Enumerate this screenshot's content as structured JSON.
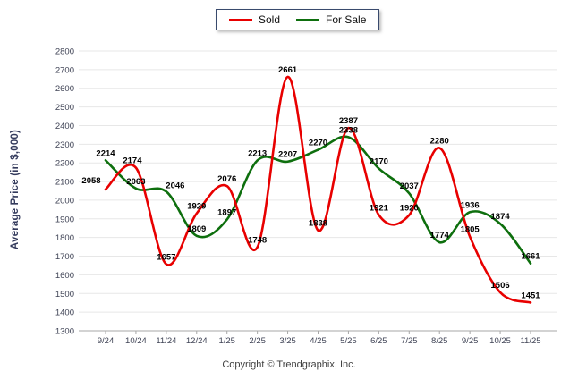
{
  "footer": {
    "copyright": "Copyright © Trendgraphix, Inc."
  },
  "axis_colors": {
    "grid": "#e7e7e7",
    "axis_line": "#a7a7a7",
    "tick_text": "#3f4355",
    "data_label_text": "#000000"
  },
  "chart_data": {
    "type": "line",
    "title": "",
    "xlabel": "",
    "ylabel": "Average Price (in $,000)",
    "ylim": [
      1300,
      2800
    ],
    "ytick_step": 100,
    "grid": "horizontal",
    "legend_position": "top-center",
    "smooth": true,
    "data_labels": true,
    "categories": [
      "9/24",
      "10/24",
      "11/24",
      "12/24",
      "1/25",
      "2/25",
      "3/25",
      "4/25",
      "5/25",
      "6/25",
      "7/25",
      "8/25",
      "9/25",
      "10/25",
      "11/25"
    ],
    "series": [
      {
        "name": "Sold",
        "color": "#e80000",
        "values": [
          2058,
          2174,
          1657,
          1929,
          2076,
          1748,
          2661,
          1838,
          2387,
          1921,
          1920,
          2280,
          1805,
          1506,
          1451
        ]
      },
      {
        "name": "For Sale",
        "color": "#0e6f0e",
        "values": [
          2214,
          2063,
          2046,
          1809,
          1897,
          2213,
          2207,
          2270,
          2338,
          2170,
          2037,
          1774,
          1936,
          1874,
          1661
        ]
      }
    ]
  }
}
